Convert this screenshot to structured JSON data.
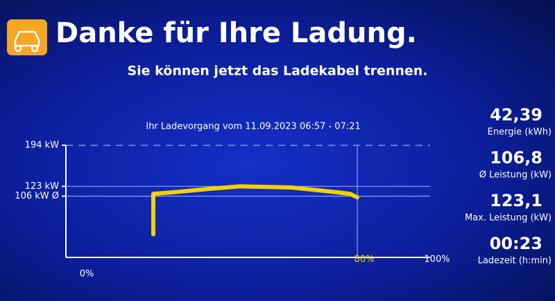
{
  "header": {
    "title": "Danke für Ihre Ladung.",
    "subtitle": "Sie können jetzt das Ladekabel trennen."
  },
  "stats": [
    {
      "value": "42,39",
      "label": "Energie (kWh)"
    },
    {
      "value": "106,8",
      "label": "Ø Leistung (kW)"
    },
    {
      "value": "123,1",
      "label": "Max. Leistung (kW)"
    },
    {
      "value": "00:23",
      "label": "Ladezeit (h:min)"
    }
  ],
  "chart_data": {
    "type": "line",
    "title": "Ihr Ladevorgang vom 11.09.2023 06:57 - 07:21",
    "x": [
      24,
      24,
      30,
      40,
      48,
      55,
      62,
      68,
      74,
      78,
      80
    ],
    "values": [
      40,
      110,
      113,
      119,
      123,
      122,
      121,
      117,
      113,
      110,
      104
    ],
    "color": "#f2d200",
    "xlim": [
      0,
      100
    ],
    "xticks": [
      {
        "value": 0,
        "label": "0%"
      },
      {
        "value": 80,
        "label": "80%"
      },
      {
        "value": 100,
        "label": "100%"
      }
    ],
    "ylim": [
      0,
      194
    ],
    "yticks": [
      {
        "value": 106,
        "label": "106 kW Ø"
      },
      {
        "value": 123,
        "label": "123 kW"
      },
      {
        "value": 194,
        "label": "194 kW"
      }
    ],
    "grid": true
  }
}
